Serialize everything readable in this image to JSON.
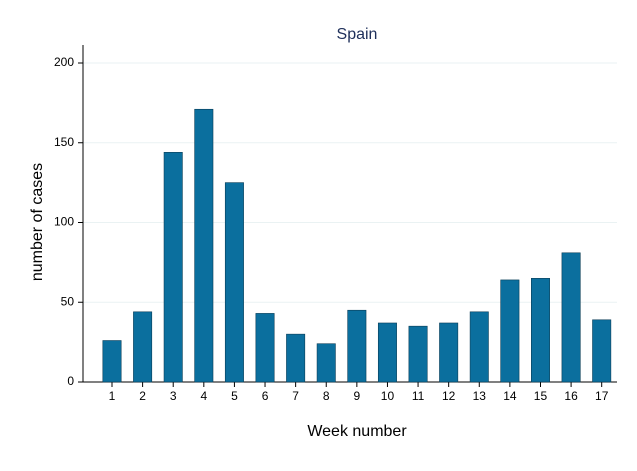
{
  "chart_data": {
    "type": "bar",
    "title": "Spain",
    "x_label": "Week number",
    "y_label": "number of cases",
    "categories": [
      1,
      2,
      3,
      4,
      5,
      6,
      7,
      8,
      9,
      10,
      11,
      12,
      13,
      14,
      15,
      16,
      17
    ],
    "values": [
      26,
      44,
      144,
      171,
      125,
      43,
      30,
      24,
      45,
      37,
      35,
      37,
      44,
      64,
      65,
      81,
      39
    ],
    "color": "#0b6f9e",
    "ylim": [
      0,
      200
    ],
    "yticks": [
      0,
      50,
      100,
      150,
      200
    ],
    "grid": true
  }
}
